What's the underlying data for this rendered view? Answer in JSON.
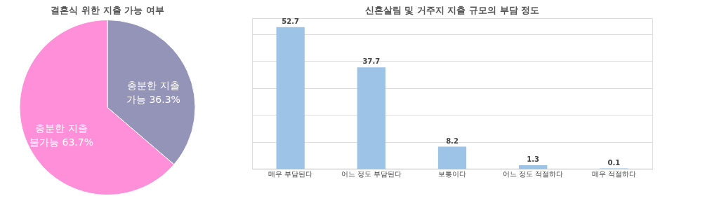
{
  "chart_data": [
    {
      "type": "pie",
      "title": "결혼식 위한 지출 가능 여부",
      "categories": [
        "충분한 지출 가능",
        "충분한 지출 불가능"
      ],
      "values": [
        36.3,
        63.7
      ],
      "colors": [
        "#9494b8",
        "#ff8fd8"
      ],
      "value_labels": [
        "36.3%",
        "63.7%"
      ]
    },
    {
      "type": "bar",
      "title": "신혼살림 및 거주지 지출 규모의 부담 정도",
      "categories": [
        "매우 부담된다",
        "어느 정도 부담된다",
        "보통이다",
        "어느 정도 적절하다",
        "매우 적절하다"
      ],
      "values": [
        52.7,
        37.7,
        8.2,
        1.3,
        0.1
      ],
      "color": "#9dc3e6",
      "data_labels": true,
      "ylim": [
        0,
        56
      ],
      "yticks": [
        {
          "value": 0,
          "label": null
        },
        {
          "value": 10,
          "label": null
        },
        {
          "value": 20,
          "label": null
        },
        {
          "value": 30,
          "label": null
        },
        {
          "value": 40,
          "label": null
        },
        {
          "value": 50,
          "label": null
        }
      ],
      "grid": "y",
      "tick_labels": "x"
    }
  ]
}
